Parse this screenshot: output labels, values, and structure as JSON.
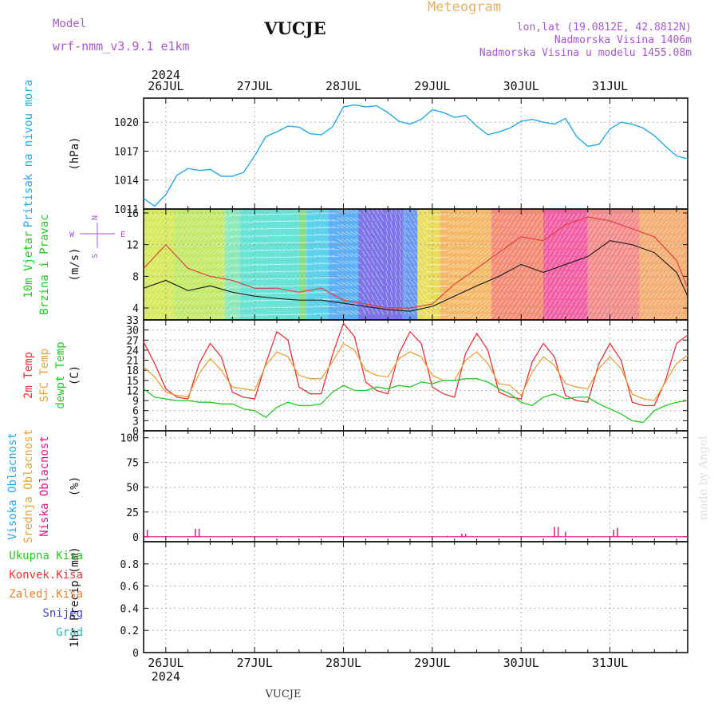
{
  "header": {
    "title": "Meteogram",
    "location": "VUCJE",
    "model_label": "Model",
    "model_name": "wrf-nmm_v3.9.1  e1km",
    "coords": "lon,lat (19.0812E, 42.8812N)",
    "elevation": "Nadmorska Visina 1406m",
    "model_elevation": "Nadmorska Visina u modelu 1455.08m",
    "footer_location": "VUCJE",
    "credit": "made by Angel"
  },
  "colors": {
    "pressure": "#22aaee",
    "temp2m": "#ee3333",
    "sfc_temp": "#e8a23a",
    "dewpt": "#22cc22",
    "cloud_high": "#22aaee",
    "cloud_mid": "#e8a23a",
    "cloud_low": "#ee1188",
    "model_text": "#a855d8",
    "title_text": "#e8b060"
  },
  "time_axis": {
    "year": "2024",
    "days": [
      "26JUL",
      "27JUL",
      "28JUL",
      "29JUL",
      "30JUL",
      "31JUL"
    ],
    "start_hour": 0,
    "end_hour": 147
  },
  "panels": [
    {
      "id": "pressure",
      "labels": [
        {
          "text": "Pritisak na nivou mora",
          "color": "#22aaee"
        }
      ],
      "unit": "(hPa)",
      "yticks": [
        1011,
        1014,
        1017,
        1020
      ],
      "ylim": [
        1011,
        1022.5
      ]
    },
    {
      "id": "wind",
      "labels": [
        {
          "text": "10m Vjetar",
          "color": "#22cc22"
        },
        {
          "text": "Brzina i Pravac",
          "color": "#22cc22"
        }
      ],
      "unit": "(m/s)",
      "yticks": [
        4,
        8,
        12,
        16
      ],
      "ylim": [
        2.5,
        16.5
      ],
      "compass": {
        "n": "N",
        "s": "S",
        "e": "E",
        "w": "W"
      }
    },
    {
      "id": "temp",
      "labels": [
        {
          "text": "2m Temp",
          "color": "#ee3333"
        },
        {
          "text": "SFC Temp",
          "color": "#e8a23a"
        },
        {
          "text": "dewpt Temp",
          "color": "#22cc22"
        }
      ],
      "unit": "(C)",
      "yticks": [
        0,
        3,
        6,
        9,
        12,
        15,
        18,
        21,
        24,
        27,
        30,
        33
      ],
      "ylim": [
        0,
        33
      ]
    },
    {
      "id": "cloud",
      "labels": [
        {
          "text": "Visoka Oblacnost",
          "color": "#22aaee"
        },
        {
          "text": "Srednja Oblacnost",
          "color": "#e8a23a"
        },
        {
          "text": "Niska Oblacnost",
          "color": "#ee1188"
        }
      ],
      "unit": "(%)",
      "yticks": [
        0,
        25,
        50,
        75,
        100
      ],
      "ylim": [
        -5,
        107
      ]
    },
    {
      "id": "precip",
      "labels": [],
      "unit": "1hr Precip (mm)",
      "yticks": [
        0,
        0.2,
        0.4,
        0.6,
        0.8
      ],
      "ylim": [
        0,
        1.0
      ],
      "legend": [
        {
          "text": "Ukupna Kisa",
          "color": "#22cc22"
        },
        {
          "text": "Konvek.Kisa",
          "color": "#ee3333"
        },
        {
          "text": "Zaledj.Kisa",
          "color": "#f08030"
        },
        {
          "text": "Snijeg",
          "color": "#4444dd"
        },
        {
          "text": "Grad",
          "color": "#22bbbb"
        }
      ]
    }
  ],
  "chart_data": {
    "type": "line",
    "x_unit": "hours from 26JUL 00UTC",
    "pressure": {
      "x": [
        0,
        3,
        6,
        9,
        12,
        15,
        18,
        21,
        24,
        27,
        30,
        33,
        36,
        39,
        42,
        45,
        48,
        51,
        54,
        57,
        60,
        63,
        66,
        69,
        72,
        75,
        78,
        81,
        84,
        87,
        90,
        93,
        96,
        99,
        102,
        105,
        108,
        111,
        114,
        117,
        120,
        123,
        126,
        129,
        132,
        135,
        138,
        141,
        144,
        147
      ],
      "values": [
        1012.1,
        1011.3,
        1012.5,
        1014.5,
        1015.2,
        1015.0,
        1015.1,
        1014.4,
        1014.4,
        1014.8,
        1016.5,
        1018.5,
        1019.0,
        1019.6,
        1019.5,
        1018.8,
        1018.7,
        1019.5,
        1021.6,
        1021.8,
        1021.6,
        1021.7,
        1021.0,
        1020.1,
        1019.8,
        1020.3,
        1021.3,
        1021.0,
        1020.5,
        1020.7,
        1019.6,
        1018.7,
        1019.0,
        1019.4,
        1020.1,
        1020.3,
        1020.0,
        1019.8,
        1020.4,
        1018.5,
        1017.5,
        1017.7,
        1019.3,
        1020.0,
        1019.8,
        1019.4,
        1018.6,
        1017.5,
        1016.5,
        1016.2
      ]
    },
    "wind": {
      "x": [
        0,
        6,
        12,
        18,
        24,
        30,
        36,
        42,
        48,
        54,
        60,
        66,
        72,
        78,
        84,
        90,
        96,
        102,
        108,
        114,
        120,
        126,
        132,
        138,
        144,
        147
      ],
      "speed": [
        6.5,
        7.5,
        6.2,
        6.8,
        6.0,
        5.5,
        5.2,
        5.0,
        5.0,
        4.6,
        4.2,
        3.8,
        3.6,
        4.2,
        5.5,
        6.8,
        8.0,
        9.5,
        8.5,
        9.5,
        10.5,
        12.5,
        12.0,
        11.0,
        8.5,
        5.5
      ],
      "gust": [
        9.0,
        12.0,
        9.0,
        8.0,
        7.5,
        6.5,
        6.5,
        6.0,
        6.5,
        5.0,
        4.5,
        4.0,
        4.0,
        4.5,
        7.0,
        9.0,
        11.0,
        13.0,
        12.5,
        14.5,
        15.5,
        15.0,
        14.0,
        13.0,
        10.0,
        6.5
      ],
      "dir_deg": [
        225,
        225,
        230,
        235,
        250,
        260,
        265,
        270,
        280,
        300,
        330,
        345,
        320,
        260,
        240,
        230,
        220,
        215,
        210,
        215,
        215,
        215,
        220,
        225,
        225,
        225
      ]
    },
    "temperature": {
      "x": [
        0,
        3,
        6,
        9,
        12,
        15,
        18,
        21,
        24,
        27,
        30,
        33,
        36,
        39,
        42,
        45,
        48,
        51,
        54,
        57,
        60,
        63,
        66,
        69,
        72,
        75,
        78,
        81,
        84,
        87,
        90,
        93,
        96,
        99,
        102,
        105,
        108,
        111,
        114,
        117,
        120,
        123,
        126,
        129,
        132,
        135,
        138,
        141,
        144,
        147
      ],
      "series": [
        {
          "name": "2m Temp",
          "values": [
            19.0,
            16.0,
            11.5,
            10.5,
            10.2,
            17.0,
            21.5,
            18.0,
            13.0,
            12.5,
            12.0,
            19.5,
            23.5,
            22.0,
            16.5,
            15.5,
            15.5,
            20.5,
            26.0,
            24.0,
            18.0,
            16.5,
            16.0,
            21.5,
            23.5,
            22.0,
            16.5,
            15.0,
            15.0,
            21.0,
            23.5,
            20.0,
            14.0,
            13.5,
            10.5,
            17.5,
            22.0,
            19.5,
            14.0,
            13.0,
            12.5,
            18.5,
            22.0,
            18.5,
            11.0,
            9.5,
            9.0,
            14.5,
            20.0,
            22.5
          ]
        },
        {
          "name": "SFC Temp",
          "values": [
            26.5,
            20.0,
            12.5,
            10.0,
            9.5,
            20.0,
            26.0,
            22.0,
            11.5,
            10.0,
            9.5,
            20.0,
            29.5,
            27.0,
            13.0,
            11.0,
            11.0,
            22.5,
            32.0,
            28.0,
            14.5,
            12.0,
            11.0,
            23.0,
            29.5,
            26.0,
            13.0,
            11.0,
            10.0,
            23.0,
            29.0,
            24.0,
            11.5,
            10.0,
            9.5,
            20.5,
            26.0,
            22.0,
            10.5,
            9.0,
            8.5,
            20.0,
            26.0,
            21.0,
            8.5,
            7.5,
            7.5,
            15.0,
            26.0,
            28.5
          ]
        },
        {
          "name": "dewpt Temp",
          "values": [
            12.5,
            10.0,
            9.5,
            9.0,
            9.0,
            8.5,
            8.5,
            8.0,
            8.0,
            6.5,
            6.0,
            4.0,
            7.0,
            8.5,
            7.5,
            7.5,
            8.0,
            11.5,
            13.5,
            12.0,
            12.0,
            13.0,
            12.5,
            13.5,
            13.0,
            14.5,
            14.0,
            15.0,
            15.0,
            15.5,
            15.5,
            14.5,
            12.5,
            11.0,
            8.5,
            7.5,
            10.0,
            11.0,
            9.5,
            10.0,
            10.0,
            8.0,
            6.5,
            5.0,
            3.0,
            2.5,
            6.0,
            7.5,
            8.5,
            9.0
          ]
        }
      ]
    },
    "clouds": {
      "x": [
        1,
        14,
        15,
        82,
        86,
        87,
        111,
        112,
        114,
        127,
        128
      ],
      "values": [
        7,
        8,
        8,
        1,
        3,
        3,
        10,
        10,
        5,
        7,
        9
      ]
    },
    "precip": {
      "values": []
    }
  }
}
